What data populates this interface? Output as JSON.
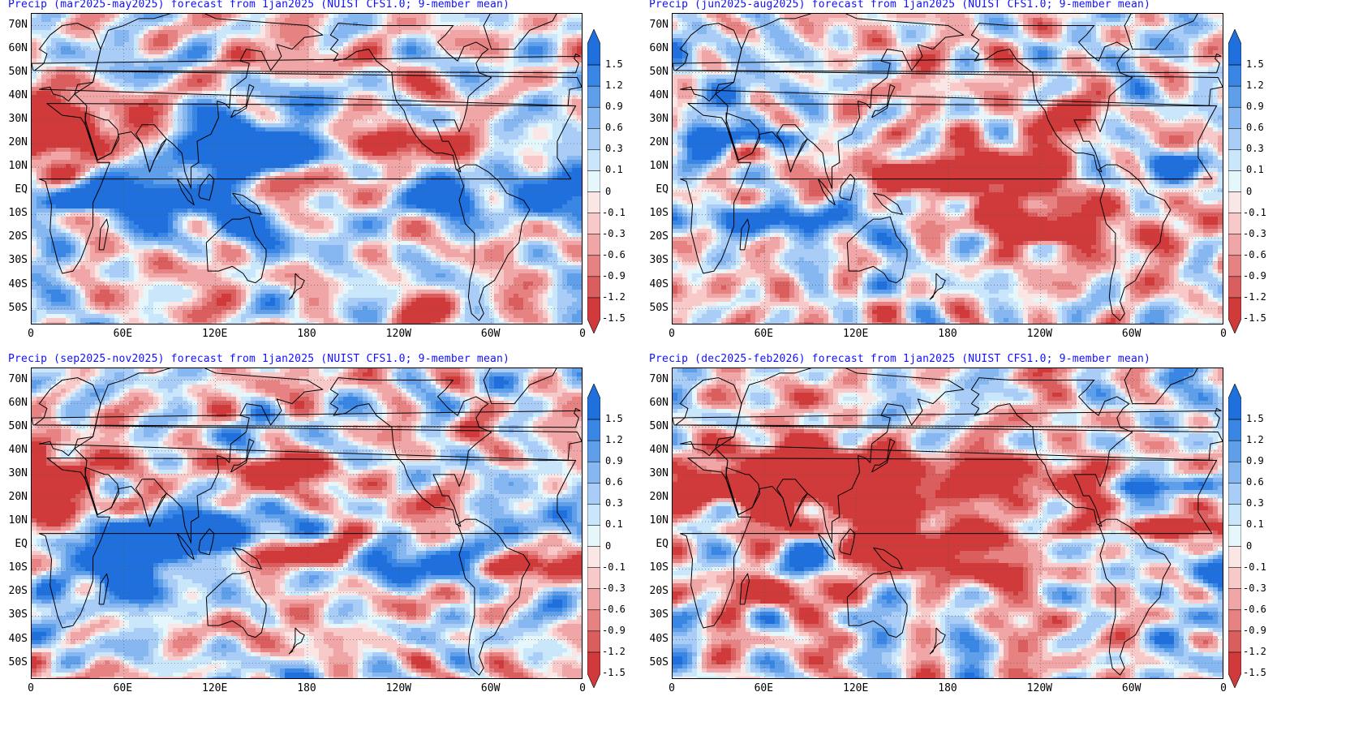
{
  "panels": [
    {
      "title": "Precip (mar2025-may2025) forecast from 1jan2025 (NUIST CFS1.0; 9-member mean)",
      "seed": 11
    },
    {
      "title": "Precip (jun2025-aug2025) forecast from 1jan2025 (NUIST CFS1.0; 9-member mean)",
      "seed": 23
    },
    {
      "title": "Precip (sep2025-nov2025) forecast from 1jan2025 (NUIST CFS1.0; 9-member mean)",
      "seed": 37
    },
    {
      "title": "Precip (dec2025-feb2026) forecast from 1jan2025 (NUIST CFS1.0; 9-member mean)",
      "seed": 53
    }
  ],
  "lat_labels": [
    "70N",
    "60N",
    "50N",
    "40N",
    "30N",
    "20N",
    "10N",
    "EQ",
    "10S",
    "20S",
    "30S",
    "40S",
    "50S"
  ],
  "lon_labels": [
    "0",
    "60E",
    "120E",
    "180",
    "120W",
    "60W",
    "0"
  ],
  "colorbar_labels": [
    "1.5",
    "1.2",
    "0.9",
    "0.6",
    "0.3",
    "0.1",
    "0",
    "-0.1",
    "-0.3",
    "-0.6",
    "-0.9",
    "-1.2",
    "-1.5"
  ],
  "colorbar_colors": [
    "#1f6fdc",
    "#3a86e4",
    "#5f9ee9",
    "#86b7f0",
    "#a9cdf6",
    "#c9e6fb",
    "#e6f7fb",
    "#fbe6e6",
    "#f7c9c9",
    "#f0a6a6",
    "#e68282",
    "#db5e5e",
    "#d03a3a"
  ]
}
